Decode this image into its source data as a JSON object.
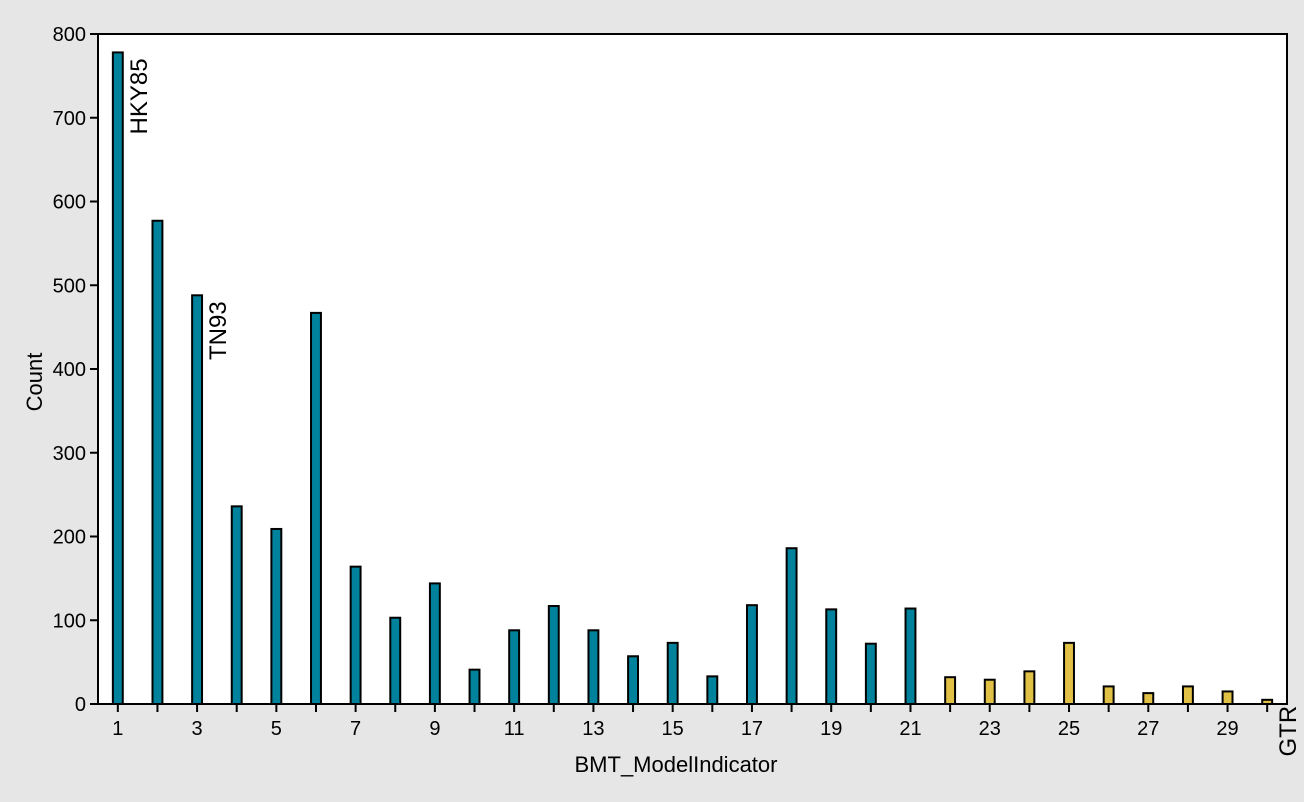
{
  "chart_data": {
    "type": "bar",
    "xlabel": "BMT_ModelIndicator",
    "ylabel": "Count",
    "x_ticks": [
      "1",
      "3",
      "5",
      "7",
      "9",
      "11",
      "13",
      "15",
      "17",
      "19",
      "21",
      "23",
      "25",
      "27",
      "29"
    ],
    "y_ticks": [
      "0",
      "100",
      "200",
      "300",
      "400",
      "500",
      "600",
      "700",
      "800"
    ],
    "xlim": [
      0.5,
      30.5
    ],
    "ylim": [
      0,
      800
    ],
    "grid": false,
    "categories": [
      1,
      2,
      3,
      4,
      5,
      6,
      7,
      8,
      9,
      10,
      11,
      12,
      13,
      14,
      15,
      16,
      17,
      18,
      19,
      20,
      21,
      22,
      23,
      24,
      25,
      26,
      27,
      28,
      29,
      30
    ],
    "values": [
      778,
      577,
      488,
      236,
      209,
      467,
      164,
      103,
      144,
      41,
      88,
      117,
      88,
      57,
      73,
      33,
      118,
      186,
      113,
      72,
      114,
      32,
      29,
      39,
      73,
      21,
      13,
      21,
      15,
      5
    ],
    "bar_groups": [
      {
        "from": 1,
        "to": 21,
        "color": "#00819c"
      },
      {
        "from": 22,
        "to": 30,
        "color": "#e0c045"
      }
    ],
    "annotations": [
      {
        "text": "HKY85",
        "category": 1
      },
      {
        "text": "TN93",
        "category": 3
      },
      {
        "text": "GTR",
        "category": 30
      }
    ]
  }
}
